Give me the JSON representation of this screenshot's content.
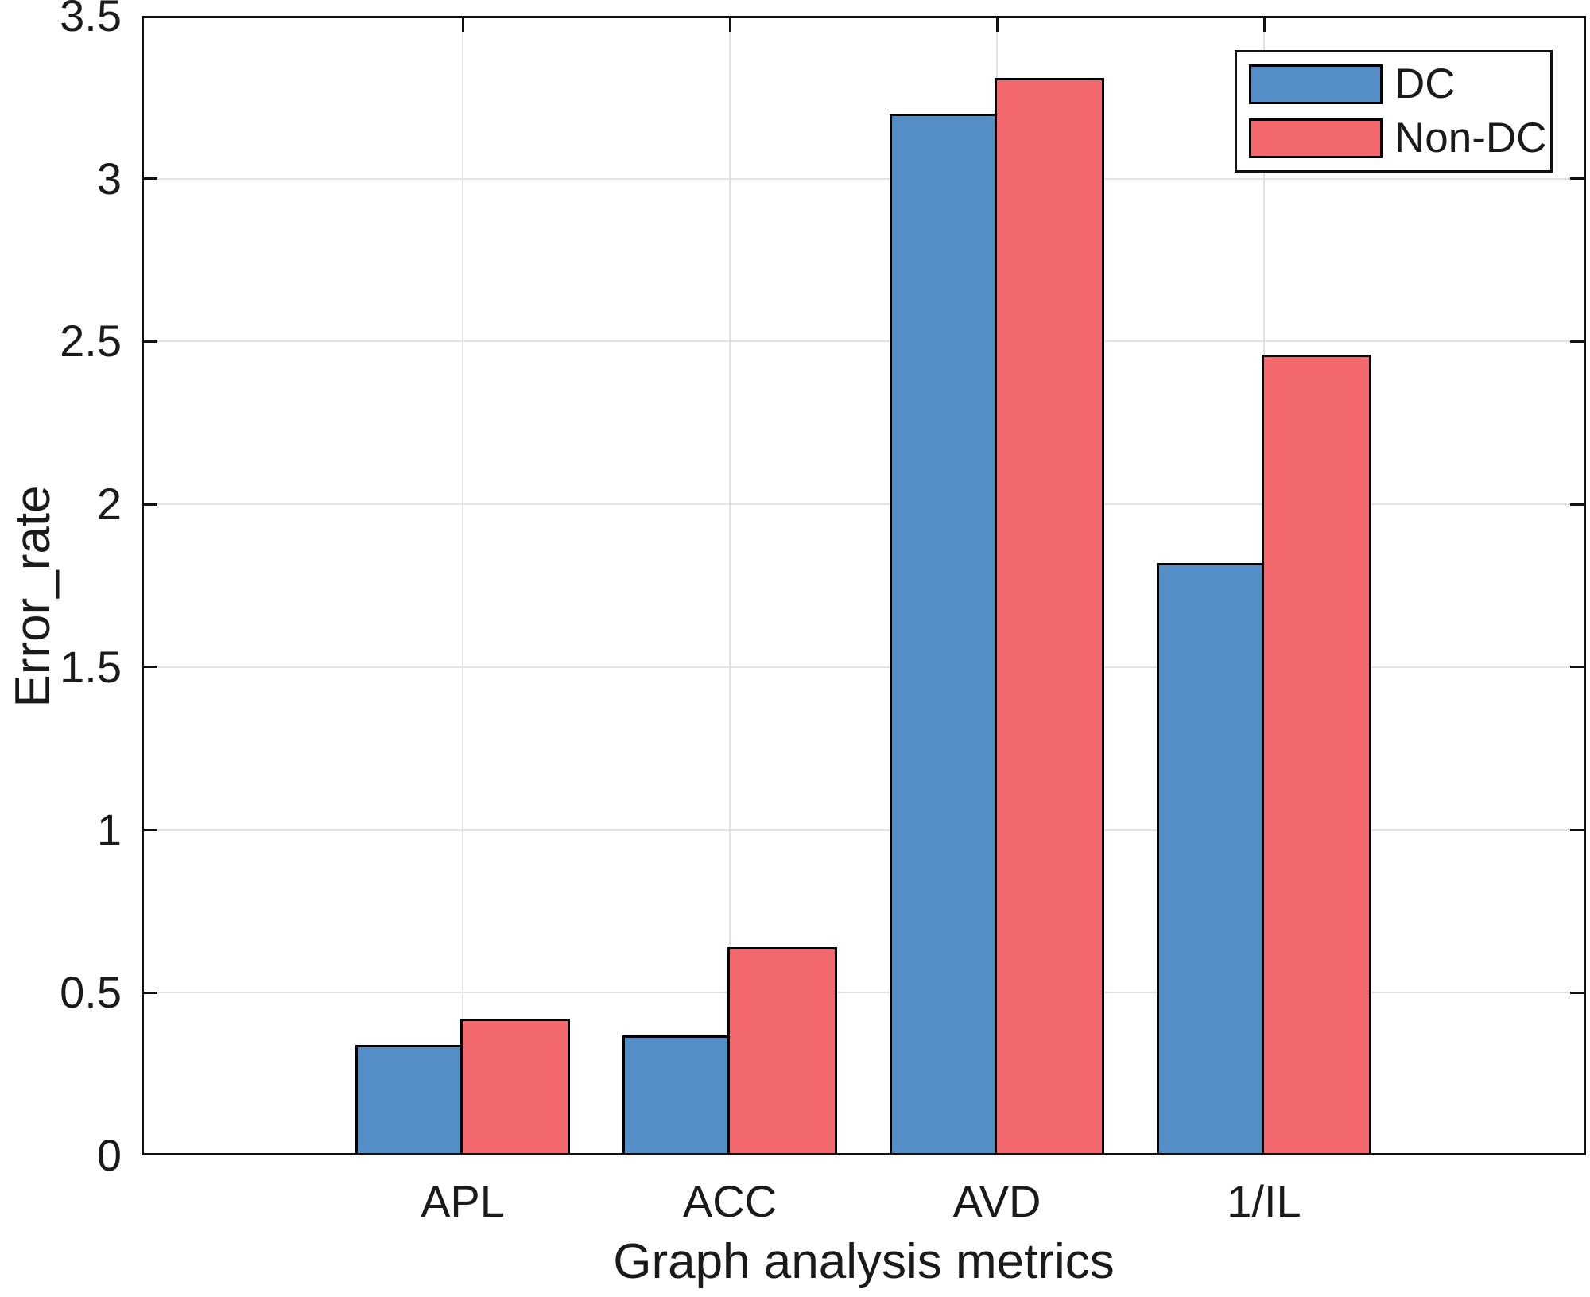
{
  "chart_data": {
    "type": "bar",
    "title": "",
    "xlabel": "Graph analysis metrics",
    "ylabel": "Error_rate",
    "categories": [
      "APL",
      "ACC",
      "AVD",
      "1/IL"
    ],
    "series": [
      {
        "name": "DC",
        "color": "#558DC7",
        "values": [
          0.34,
          0.37,
          3.2,
          1.82
        ]
      },
      {
        "name": "Non-DC",
        "color": "#F3686D",
        "values": [
          0.42,
          0.64,
          3.31,
          2.46
        ]
      }
    ],
    "ylim": [
      0,
      3.5
    ],
    "ytick_labels": [
      "0",
      "0.5",
      "1",
      "1.5",
      "2",
      "2.5",
      "3",
      "3.5"
    ],
    "ytick_values": [
      0,
      0.5,
      1,
      1.5,
      2,
      2.5,
      3,
      3.5
    ],
    "grid": true,
    "legend_position": "top-right",
    "colors": {
      "bar_edge": "#000000",
      "grid": "#E2E2E2",
      "axis": "#111111",
      "text": "#1A1A1A",
      "background": "#FFFFFF"
    }
  }
}
